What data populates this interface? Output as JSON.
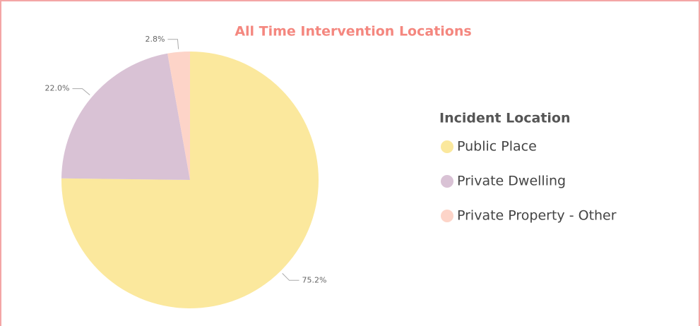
{
  "chart_data": {
    "type": "pie",
    "title": "All Time Intervention Locations",
    "legend_title": "Incident Location",
    "categories": [
      "Public Place",
      "Private Dwelling",
      "Private Property - Other"
    ],
    "values": [
      75.2,
      22.0,
      2.8
    ],
    "value_labels": [
      "75.2%",
      "22.0%",
      "2.8%"
    ],
    "colors": [
      "#fbe89d",
      "#d9c2d5",
      "#fdd4c8"
    ],
    "legend": "right"
  }
}
